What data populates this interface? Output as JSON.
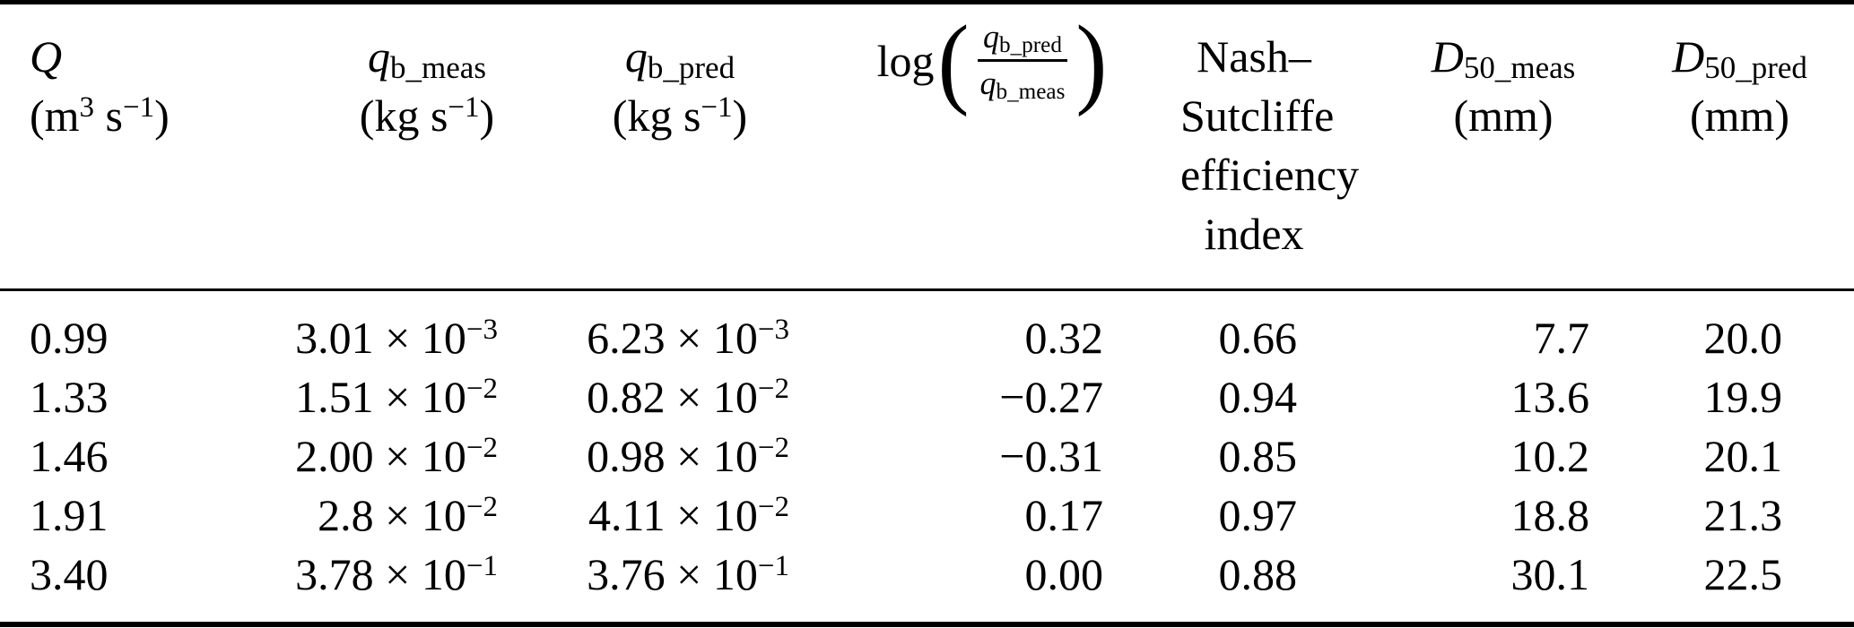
{
  "table": {
    "description": "Results table comparing measured and predicted bedload transport rates and grain sizes",
    "columns": [
      {
        "id": "discharge",
        "align": "left",
        "header_lines": [
          "*Q*",
          "(m^{3} s^{−1})"
        ]
      },
      {
        "id": "qb-meas",
        "align": "right",
        "header_lines": [
          "*q*_{b_meas}",
          "(kg s^{−1})"
        ]
      },
      {
        "id": "qb-pred",
        "align": "right",
        "header_lines": [
          "*q*_{b_pred}",
          "(kg s^{−1})"
        ]
      },
      {
        "id": "log-ratio",
        "align": "right",
        "header_fraction": {
          "prefix": "log",
          "open_paren": "(",
          "close_paren": ")",
          "numerator": "*q*_{b_pred}",
          "denominator": "*q*_{b_meas}"
        }
      },
      {
        "id": "nse",
        "align": "right",
        "header_lines": [
          "Nash–",
          "Sutcliffe",
          "efficiency",
          "index"
        ]
      },
      {
        "id": "d50-meas",
        "align": "right",
        "header_lines": [
          "*D*_{50_meas}",
          "(mm)"
        ]
      },
      {
        "id": "d50-pred",
        "align": "right",
        "header_lines": [
          "*D*_{50_pred}",
          "(mm)"
        ]
      }
    ],
    "rows": [
      [
        "0.99",
        "3.01 × 10^{−3}",
        "6.23 × 10^{−3}",
        "0.32",
        "0.66",
        "7.7",
        "20.0"
      ],
      [
        "1.33",
        "1.51 × 10^{−2}",
        "0.82 × 10^{−2}",
        "−0.27",
        "0.94",
        "13.6",
        "19.9"
      ],
      [
        "1.46",
        "2.00 × 10^{−2}",
        "0.98 × 10^{−2}",
        "−0.31",
        "0.85",
        "10.2",
        "20.1"
      ],
      [
        "1.91",
        "2.8 × 10^{−2}",
        "4.11 × 10^{−2}",
        "0.17",
        "0.97",
        "18.8",
        "21.3"
      ],
      [
        "3.40",
        "3.78 × 10^{−1}",
        "3.76 × 10^{−1}",
        "0.00",
        "0.88",
        "30.1",
        "22.5"
      ]
    ],
    "rules_color": "#000000",
    "text_color": "#000000",
    "background_color": "#ffffff"
  }
}
